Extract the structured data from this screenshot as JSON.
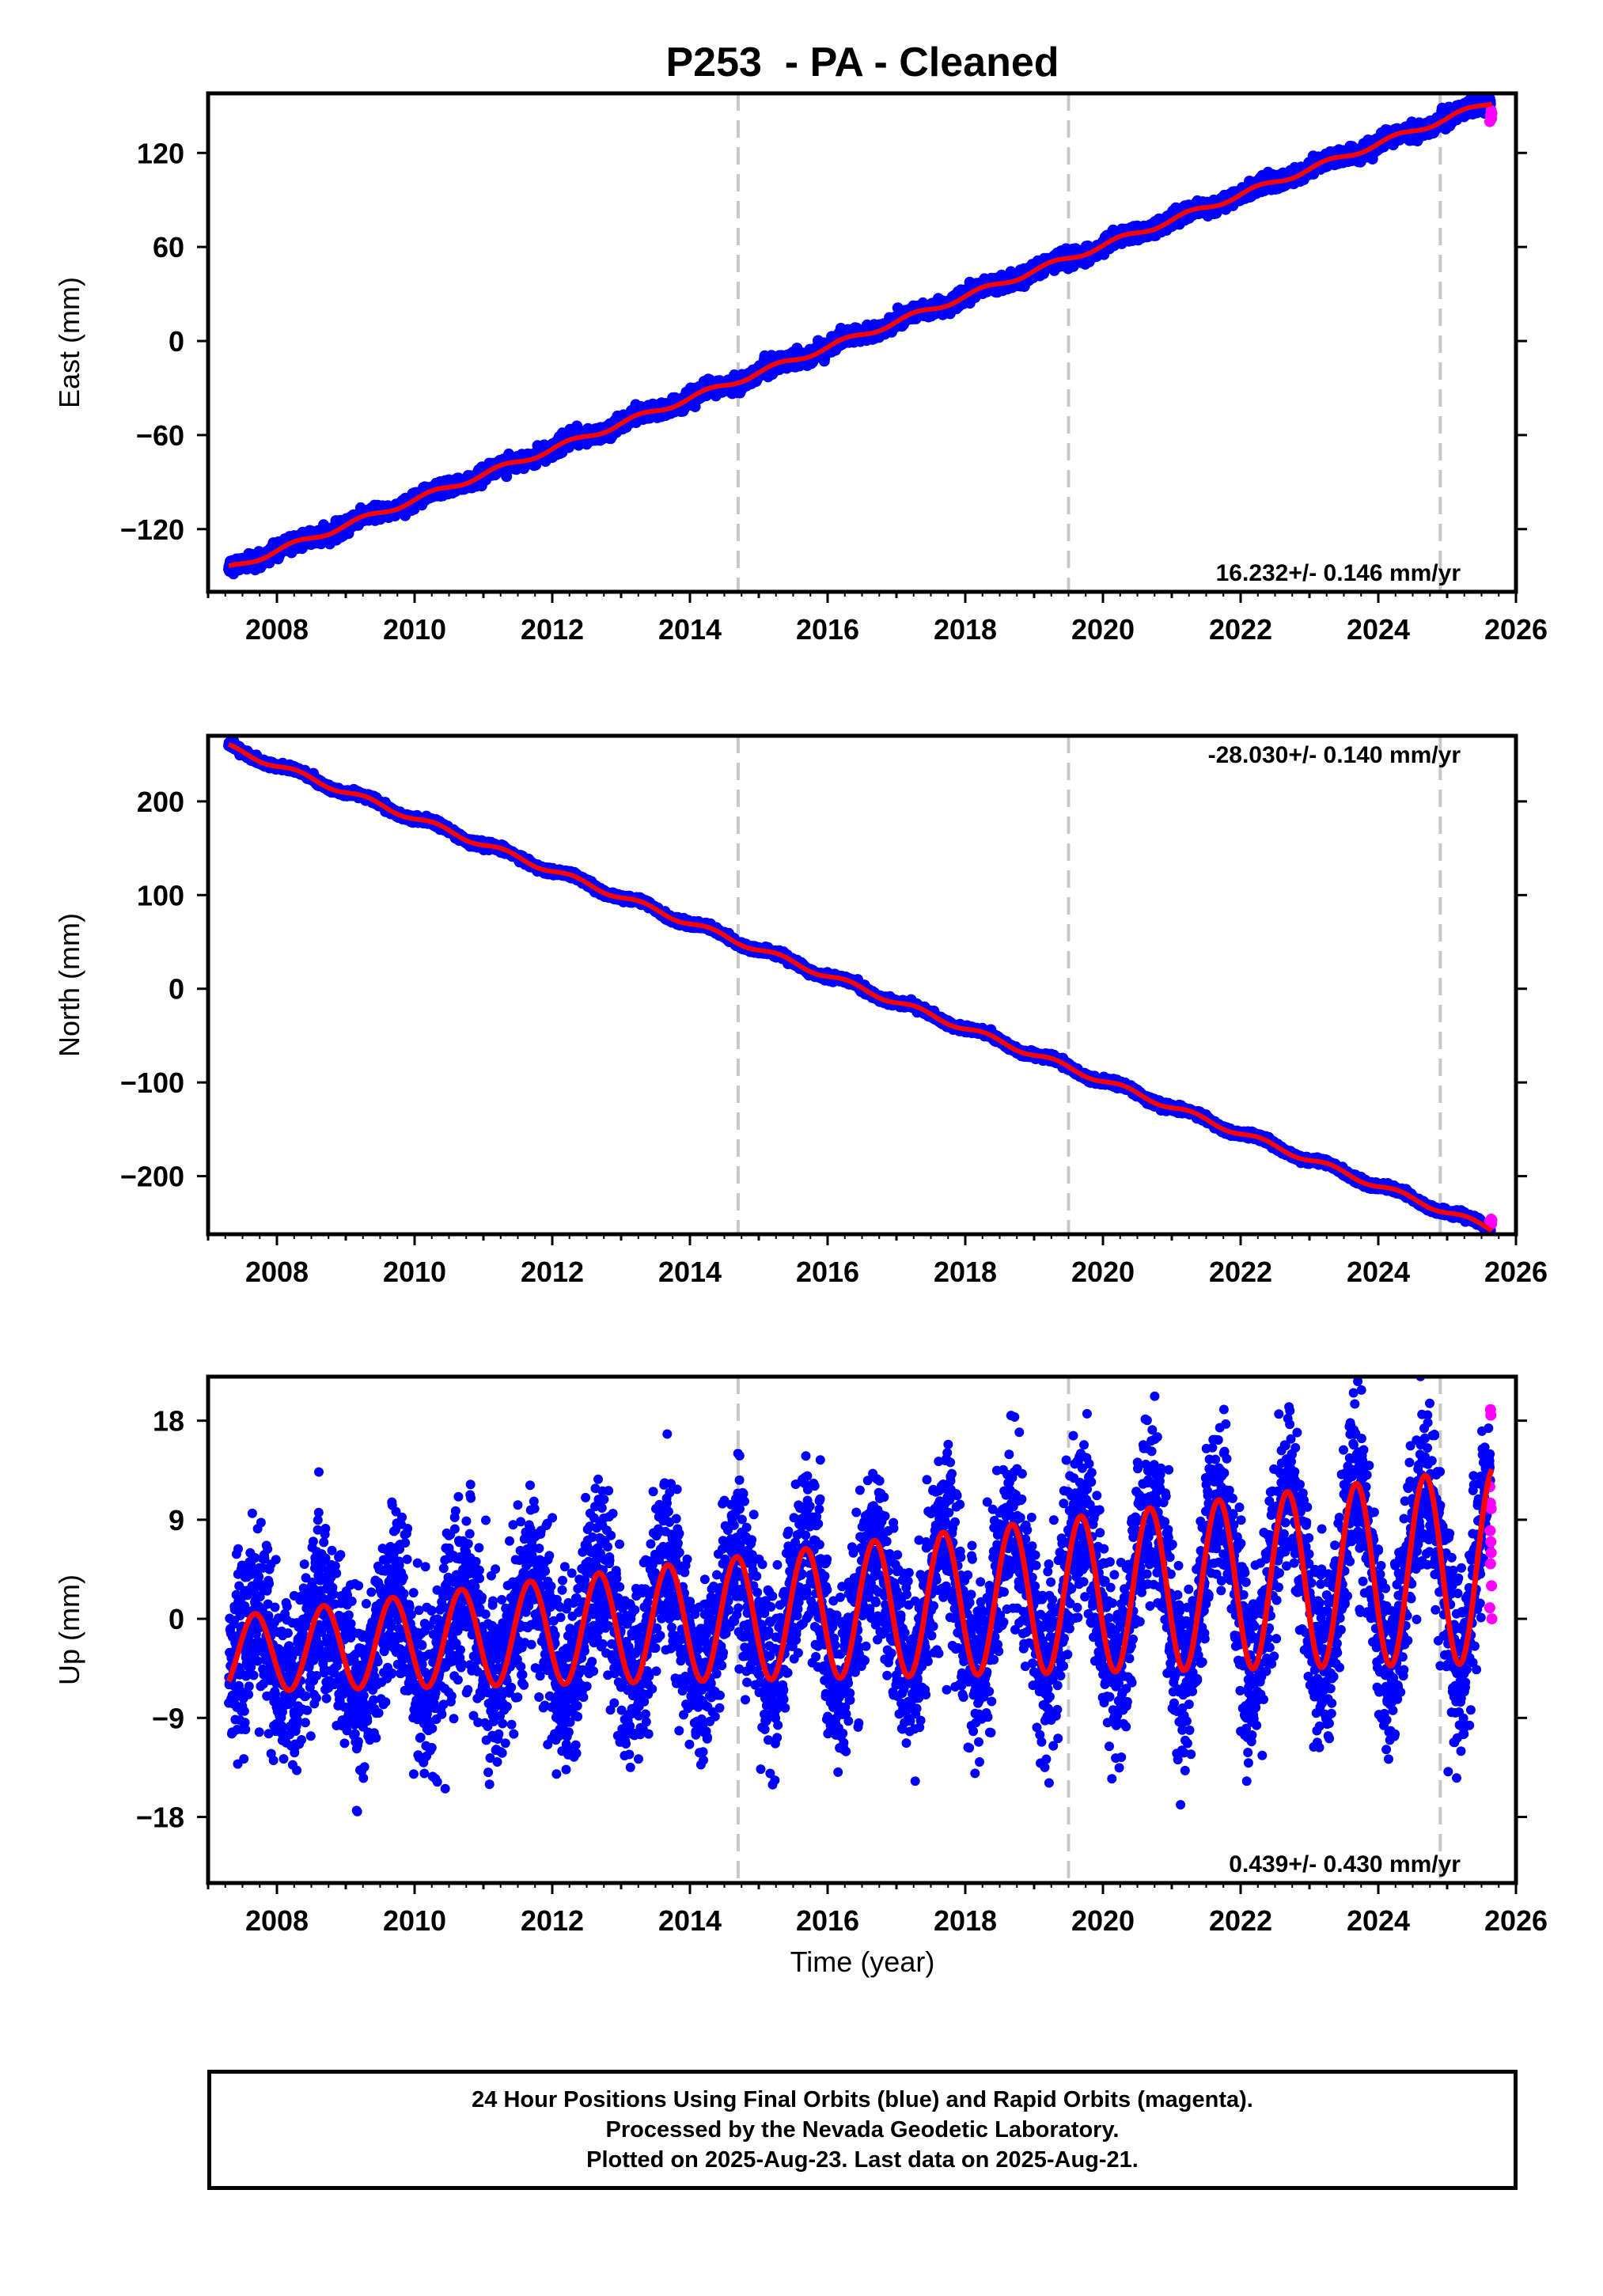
{
  "title": "P253  - PA - Cleaned",
  "xlabel": "Time (year)",
  "colors": {
    "final_orbits": "#0000ff",
    "rapid_orbits": "#ff00ff",
    "fit": "#ff0000",
    "vertical_reference_lines": "#c8c8c8"
  },
  "footer": {
    "line1": "24 Hour Positions Using Final Orbits (blue) and Rapid Orbits (magenta).",
    "line2": "Processed by the Nevada Geodetic Laboratory.",
    "line3": "Plotted on 2025-Aug-23. Last data on 2025-Aug-21."
  },
  "chart_data": [
    {
      "type": "scatter",
      "panel": "east",
      "ylabel": "East (mm)",
      "xlim": [
        2007.0,
        2026.0
      ],
      "ylim": [
        -160,
        158
      ],
      "x_ticks": [
        2008,
        2010,
        2012,
        2014,
        2016,
        2018,
        2020,
        2022,
        2024,
        2026
      ],
      "y_ticks": [
        -120,
        -60,
        0,
        60,
        120
      ],
      "velocity_label": "16.232+/- 0.146 mm/yr",
      "velocity_label_position": "bottom-right",
      "vertical_lines_x": [
        2014.7,
        2019.5,
        2024.9
      ],
      "data_span": [
        2007.3,
        2025.65
      ],
      "trend": {
        "rate": 16.232,
        "offset_at_2016": -4.0
      },
      "seasonal": {
        "amplitude": 1.8,
        "peak_phase_year": 0.25
      },
      "scatter_noise": 2.2,
      "rapid_orbits_points": [
        {
          "x": 2025.62,
          "y": 140
        },
        {
          "x": 2025.63,
          "y": 144
        },
        {
          "x": 2025.64,
          "y": 147
        },
        {
          "x": 2025.645,
          "y": 142
        },
        {
          "x": 2025.65,
          "y": 145
        }
      ],
      "series": [
        {
          "name": "Final Orbits (blue)",
          "role": "daily positions"
        },
        {
          "name": "Rapid Orbits (magenta)",
          "role": "daily positions"
        }
      ]
    },
    {
      "type": "scatter",
      "panel": "north",
      "ylabel": "North (mm)",
      "xlim": [
        2007.0,
        2026.0
      ],
      "ylim": [
        -262,
        270
      ],
      "x_ticks": [
        2008,
        2010,
        2012,
        2014,
        2016,
        2018,
        2020,
        2022,
        2024,
        2026
      ],
      "y_ticks": [
        -200,
        -100,
        0,
        100,
        200
      ],
      "velocity_label": "-28.030+/- 0.140 mm/yr",
      "velocity_label_position": "top-right",
      "vertical_lines_x": [
        2014.7,
        2019.5,
        2024.9
      ],
      "data_span": [
        2007.3,
        2025.65
      ],
      "trend": {
        "rate": -28.03,
        "offset_at_2016": 14.0
      },
      "seasonal": {
        "amplitude": 3.0,
        "peak_phase_year": 0.3
      },
      "scatter_noise": 1.6,
      "rapid_orbits_points": [
        {
          "x": 2025.62,
          "y": -248
        },
        {
          "x": 2025.63,
          "y": -250
        },
        {
          "x": 2025.64,
          "y": -246
        },
        {
          "x": 2025.645,
          "y": -251
        },
        {
          "x": 2025.65,
          "y": -247
        }
      ],
      "series": [
        {
          "name": "Final Orbits (blue)",
          "role": "daily positions"
        },
        {
          "name": "Rapid Orbits (magenta)",
          "role": "daily positions"
        }
      ]
    },
    {
      "type": "scatter",
      "panel": "up",
      "ylabel": "Up (mm)",
      "xlim": [
        2007.0,
        2026.0
      ],
      "ylim": [
        -24,
        22
      ],
      "x_ticks": [
        2008,
        2010,
        2012,
        2014,
        2016,
        2018,
        2020,
        2022,
        2024,
        2026
      ],
      "y_ticks": [
        -18,
        -9,
        0,
        9,
        18
      ],
      "velocity_label": "0.439+/- 0.430 mm/yr",
      "velocity_label_position": "bottom-right",
      "vertical_lines_x": [
        2014.7,
        2019.5,
        2024.9
      ],
      "data_span": [
        2007.3,
        2025.65
      ],
      "trend": {
        "rate": 0.439,
        "offset_at_2016": 0.6
      },
      "seasonal": {
        "amplitude": 6.0,
        "amplitude_growth_per_year": 0.05,
        "peak_phase_year": 0.68
      },
      "scatter_noise": 3.8,
      "rapid_orbits_points": [
        {
          "x": 2025.63,
          "y": 19
        },
        {
          "x": 2025.635,
          "y": 18.5
        },
        {
          "x": 2025.62,
          "y": 12
        },
        {
          "x": 2025.63,
          "y": 10.5
        },
        {
          "x": 2025.64,
          "y": 10
        },
        {
          "x": 2025.625,
          "y": 8
        },
        {
          "x": 2025.635,
          "y": 7
        },
        {
          "x": 2025.64,
          "y": 6
        },
        {
          "x": 2025.63,
          "y": 5
        },
        {
          "x": 2025.645,
          "y": 3
        },
        {
          "x": 2025.62,
          "y": 1
        },
        {
          "x": 2025.65,
          "y": 0
        }
      ],
      "series": [
        {
          "name": "Final Orbits (blue)",
          "role": "daily positions"
        },
        {
          "name": "Rapid Orbits (magenta)",
          "role": "daily positions"
        }
      ]
    }
  ]
}
